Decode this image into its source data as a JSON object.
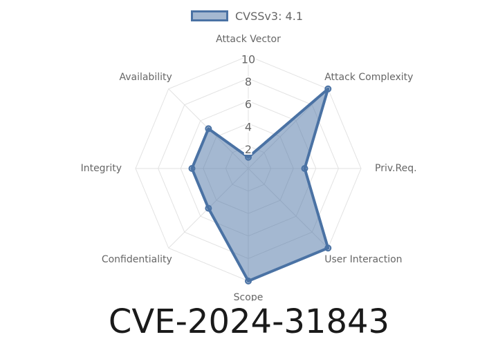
{
  "chart_data": {
    "type": "radar",
    "axes": [
      "Attack Vector",
      "Attack Complexity",
      "Priv.Req.",
      "User Interaction",
      "Scope",
      "Confidentiality",
      "Integrity",
      "Availability"
    ],
    "series": [
      {
        "name": "CVSSv3: 4.1",
        "values": [
          1,
          10,
          5,
          10,
          10,
          5,
          5,
          5
        ],
        "color": "#4a72a4"
      }
    ],
    "r_ticks": [
      "2",
      "4",
      "6",
      "8",
      "10"
    ],
    "rmax": 10,
    "grid": true,
    "legend_position": "top"
  },
  "footer": {
    "title": "CVE-2024-31843"
  }
}
